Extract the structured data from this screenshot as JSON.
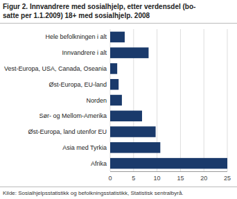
{
  "chart_data": {
    "type": "bar",
    "orientation": "horizontal",
    "title": "Figur 2. Innvandrere med sosialhjelp, etter verdensdel (bo-",
    "subtitle": "satte per 1.1.2009) 18+ med sosialhjelp. 2008",
    "categories": [
      "Afrika",
      "Asia med Tyrkia",
      "Øst-Europa, land utenfor EU",
      "Sør- og Mellom-Amerika",
      "Norden",
      "Øst-Europa, EU-land",
      "Vest-Europa, USA, Canada, Oseania",
      "Innvandrere i alt",
      "Hele befolkningen i alt"
    ],
    "values": [
      25.0,
      10.7,
      9.7,
      6.8,
      2.5,
      1.8,
      1.5,
      8.2,
      3.1
    ],
    "color": "#1a3a6b",
    "xlim": [
      0,
      25
    ],
    "xticks": [
      0,
      5,
      10,
      15,
      20,
      25
    ],
    "grid": true,
    "annotations": [
      "Kilde: Sosialhjelpsstatistikk og befolkningsstatistikk, Statistisk sentralbyrå."
    ]
  }
}
